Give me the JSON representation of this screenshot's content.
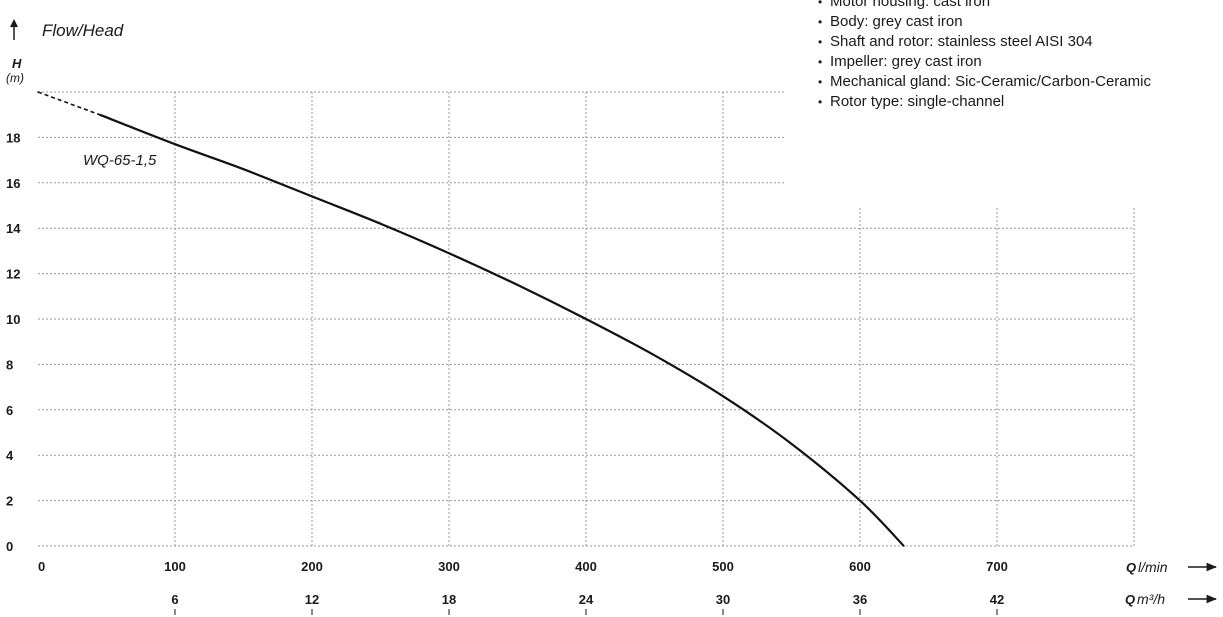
{
  "title": "Flow/Head",
  "features": [
    "Motor housing: cast iron",
    "Body: grey cast iron",
    "Shaft and rotor: stainless steel AISI 304",
    "Impeller: grey cast iron",
    "Mechanical gland: Sic-Ceramic/Carbon-Ceramic",
    "Rotor type: single-channel"
  ],
  "chart_data": {
    "type": "line",
    "ylabel": "H",
    "yunit": "(m)",
    "xlabel": "Q",
    "xunit": "l/min",
    "x2label": "Q",
    "x2unit": "m³/h",
    "xlim": [
      0,
      800
    ],
    "ylim": [
      0,
      20
    ],
    "x_ticks": [
      0,
      100,
      200,
      300,
      400,
      500,
      600,
      700
    ],
    "y_ticks": [
      0,
      2,
      4,
      6,
      8,
      10,
      12,
      14,
      16,
      18
    ],
    "x2_ticks": [
      6,
      12,
      18,
      24,
      30,
      36,
      42
    ],
    "grid": true,
    "series": [
      {
        "name": "WQ-65-1,5",
        "x": [
          0,
          45,
          100,
          150,
          200,
          250,
          300,
          350,
          400,
          450,
          500,
          550,
          600,
          632
        ],
        "y": [
          20,
          19.0,
          17.7,
          16.6,
          15.4,
          14.2,
          12.9,
          11.5,
          10.0,
          8.4,
          6.6,
          4.5,
          2.0,
          0
        ]
      }
    ],
    "extrapolated_until_x": 45
  }
}
